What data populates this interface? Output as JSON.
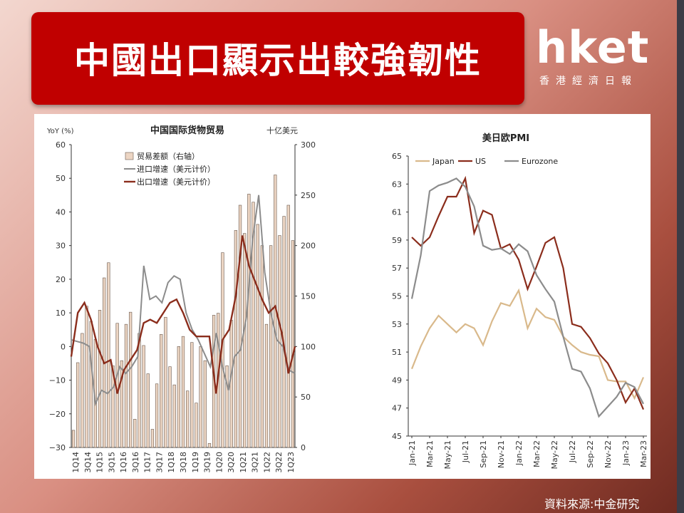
{
  "slide": {
    "title": "中國出口顯示出較強韌性",
    "logo_main": "hket",
    "logo_sub": "香港經濟日報",
    "source": "資料來源:中金研究"
  },
  "colors": {
    "title_bg": "#c00000",
    "bar": "#ecd5c3",
    "bar_edge": "#6b5a4e",
    "import_line": "#8c8c8c",
    "export_line": "#8b2d1c",
    "japan": "#d9b98b",
    "us": "#8b2d1c",
    "eurozone": "#8c8c8c"
  },
  "chart_data": [
    {
      "type": "bar",
      "title": "中国国际货物贸易",
      "left_axis_label": "YoY (%)",
      "right_axis_label": "十亿美元",
      "left_ylim": [
        -30,
        60
      ],
      "right_ylim": [
        0,
        300
      ],
      "left_ticks": [
        "60",
        "50",
        "40",
        "30",
        "20",
        "10",
        "0",
        "−10",
        "−20",
        "−30"
      ],
      "right_ticks": [
        "300",
        "250",
        "200",
        "150",
        "100",
        "50",
        "0"
      ],
      "x_tick_labels": [
        "1Q14",
        "3Q14",
        "1Q15",
        "3Q15",
        "1Q16",
        "3Q16",
        "1Q17",
        "3Q17",
        "1Q18",
        "3Q18",
        "1Q19",
        "3Q19",
        "1Q20",
        "3Q20",
        "1Q21",
        "3Q21",
        "1Q22",
        "3Q22",
        "1Q23"
      ],
      "grid": false,
      "legend_position": "top-left",
      "series": [
        {
          "name": "贸易差额（右轴）",
          "kind": "bar",
          "axis": "right",
          "values": [
            17,
            84,
            113,
            140,
            125,
            107,
            136,
            168,
            183,
            81,
            123,
            86,
            122,
            134,
            28,
            113,
            101,
            73,
            18,
            63,
            112,
            129,
            80,
            62,
            100,
            110,
            56,
            104,
            44,
            100,
            86,
            4,
            131,
            133,
            193,
            81,
            126,
            215,
            240,
            212,
            251,
            243,
            221,
            200,
            122,
            200,
            270,
            210,
            229,
            240,
            205
          ]
        },
        {
          "name": "进口增速（美元计价）",
          "kind": "line",
          "axis": "left",
          "values": [
            2,
            1.5,
            1,
            0,
            -17,
            -13,
            -14,
            -12,
            -6,
            -8,
            -6,
            -3,
            24,
            14,
            15,
            13,
            19,
            21,
            20,
            10,
            5,
            2,
            -2,
            -6,
            4,
            -6,
            -13,
            -3,
            -1,
            9,
            32,
            45,
            22,
            10,
            2,
            0,
            -7,
            -8
          ]
        },
        {
          "name": "出口增速（美元计价）",
          "kind": "line",
          "axis": "left",
          "values": [
            -3,
            10,
            13,
            8,
            0,
            -5,
            -4,
            -14,
            -7,
            -4,
            -1,
            7,
            8,
            7,
            10,
            13,
            14,
            10,
            5,
            3,
            3,
            3,
            -14,
            2,
            5,
            15,
            33,
            24,
            19,
            14,
            10,
            12,
            4,
            -8,
            0
          ]
        }
      ]
    },
    {
      "type": "line",
      "title": "美日欧PMI",
      "ylim": [
        45,
        65
      ],
      "y_ticks": [
        "65",
        "63",
        "61",
        "59",
        "57",
        "55",
        "53",
        "51",
        "49",
        "47",
        "45"
      ],
      "x_tick_labels": [
        "Jan-21",
        "Mar-21",
        "May-21",
        "Jul-21",
        "Sep-21",
        "Nov-21",
        "Jan-22",
        "Mar-22",
        "May-22",
        "Jul-22",
        "Sep-22",
        "Nov-22",
        "Jan-23",
        "Mar-23"
      ],
      "grid": false,
      "legend_position": "top",
      "series": [
        {
          "name": "Japan",
          "values": [
            49.8,
            51.4,
            52.7,
            53.6,
            53.0,
            52.4,
            53.0,
            52.7,
            51.5,
            53.2,
            54.5,
            54.3,
            55.4,
            52.7,
            54.1,
            53.5,
            53.3,
            52.1,
            51.5,
            51.0,
            50.8,
            50.7,
            49.0,
            48.9,
            48.9,
            47.7,
            49.2
          ]
        },
        {
          "name": "US",
          "values": [
            59.2,
            58.6,
            59.2,
            60.7,
            62.1,
            62.1,
            63.4,
            59.5,
            61.1,
            60.8,
            58.4,
            58.7,
            57.6,
            55.5,
            57.1,
            58.8,
            59.2,
            57.0,
            53.0,
            52.8,
            52.0,
            50.9,
            50.2,
            49.0,
            47.4,
            48.4,
            46.9
          ]
        },
        {
          "name": "Eurozone",
          "values": [
            54.8,
            57.9,
            62.5,
            62.9,
            63.1,
            63.4,
            62.8,
            61.4,
            58.6,
            58.3,
            58.4,
            58.0,
            58.7,
            58.2,
            56.5,
            55.5,
            54.6,
            52.1,
            49.8,
            49.6,
            48.4,
            46.4,
            47.1,
            47.8,
            48.8,
            48.5,
            47.3
          ]
        }
      ]
    }
  ]
}
